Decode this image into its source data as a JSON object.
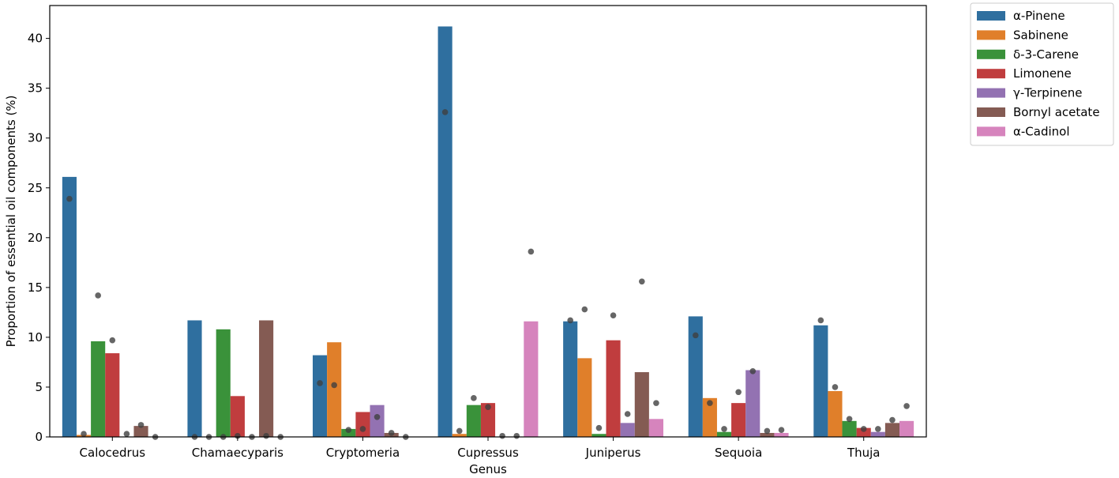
{
  "chart_data": {
    "type": "bar",
    "xlabel": "Genus",
    "ylabel": "Proportion of essential oil components (%)",
    "ylim": [
      0,
      43.3
    ],
    "yticks": [
      0,
      5,
      10,
      15,
      20,
      25,
      30,
      35,
      40
    ],
    "grid": false,
    "legend_position": "outside-top-right",
    "categories": [
      "Calocedrus",
      "Chamaecyparis",
      "Cryptomeria",
      "Cupressus",
      "Juniperus",
      "Sequoia",
      "Thuja"
    ],
    "series": [
      {
        "name": "α-Pinene",
        "color": "#2f6f9f",
        "values": [
          26.1,
          11.7,
          8.2,
          41.2,
          11.6,
          12.1,
          11.2
        ],
        "points": [
          23.9,
          0.0,
          5.4,
          32.6,
          11.7,
          10.2,
          11.7
        ]
      },
      {
        "name": "Sabinene",
        "color": "#e07f2a",
        "values": [
          0.2,
          0.0,
          9.5,
          0.3,
          7.9,
          3.9,
          4.6
        ],
        "points": [
          0.3,
          0.0,
          5.2,
          0.6,
          12.8,
          3.4,
          5.0
        ]
      },
      {
        "name": "δ-3-Carene",
        "color": "#3a923a",
        "values": [
          9.6,
          10.8,
          0.8,
          3.2,
          0.3,
          0.5,
          1.6
        ],
        "points": [
          14.2,
          0.0,
          0.7,
          3.9,
          0.9,
          0.8,
          1.8
        ]
      },
      {
        "name": "Limonene",
        "color": "#c03d3e",
        "values": [
          8.4,
          4.1,
          2.5,
          3.4,
          9.7,
          3.4,
          0.9
        ],
        "points": [
          9.7,
          0.1,
          0.8,
          3.0,
          12.2,
          4.5,
          0.8
        ]
      },
      {
        "name": "γ-Terpinene",
        "color": "#9372b2",
        "values": [
          0.0,
          0.0,
          3.2,
          0.0,
          1.4,
          6.7,
          0.5
        ],
        "points": [
          0.3,
          0.0,
          2.0,
          0.1,
          2.3,
          6.6,
          0.8
        ]
      },
      {
        "name": "Bornyl acetate",
        "color": "#845b53",
        "values": [
          1.1,
          11.7,
          0.4,
          0.0,
          6.5,
          0.4,
          1.4
        ],
        "points": [
          1.2,
          0.1,
          0.4,
          0.1,
          15.6,
          0.6,
          1.7
        ]
      },
      {
        "name": "α-Cadinol",
        "color": "#d684bd",
        "values": [
          0.0,
          0.0,
          0.0,
          11.6,
          1.8,
          0.4,
          1.6
        ],
        "points": [
          0.0,
          0.0,
          0.0,
          18.6,
          3.4,
          0.7,
          3.1
        ]
      }
    ]
  }
}
